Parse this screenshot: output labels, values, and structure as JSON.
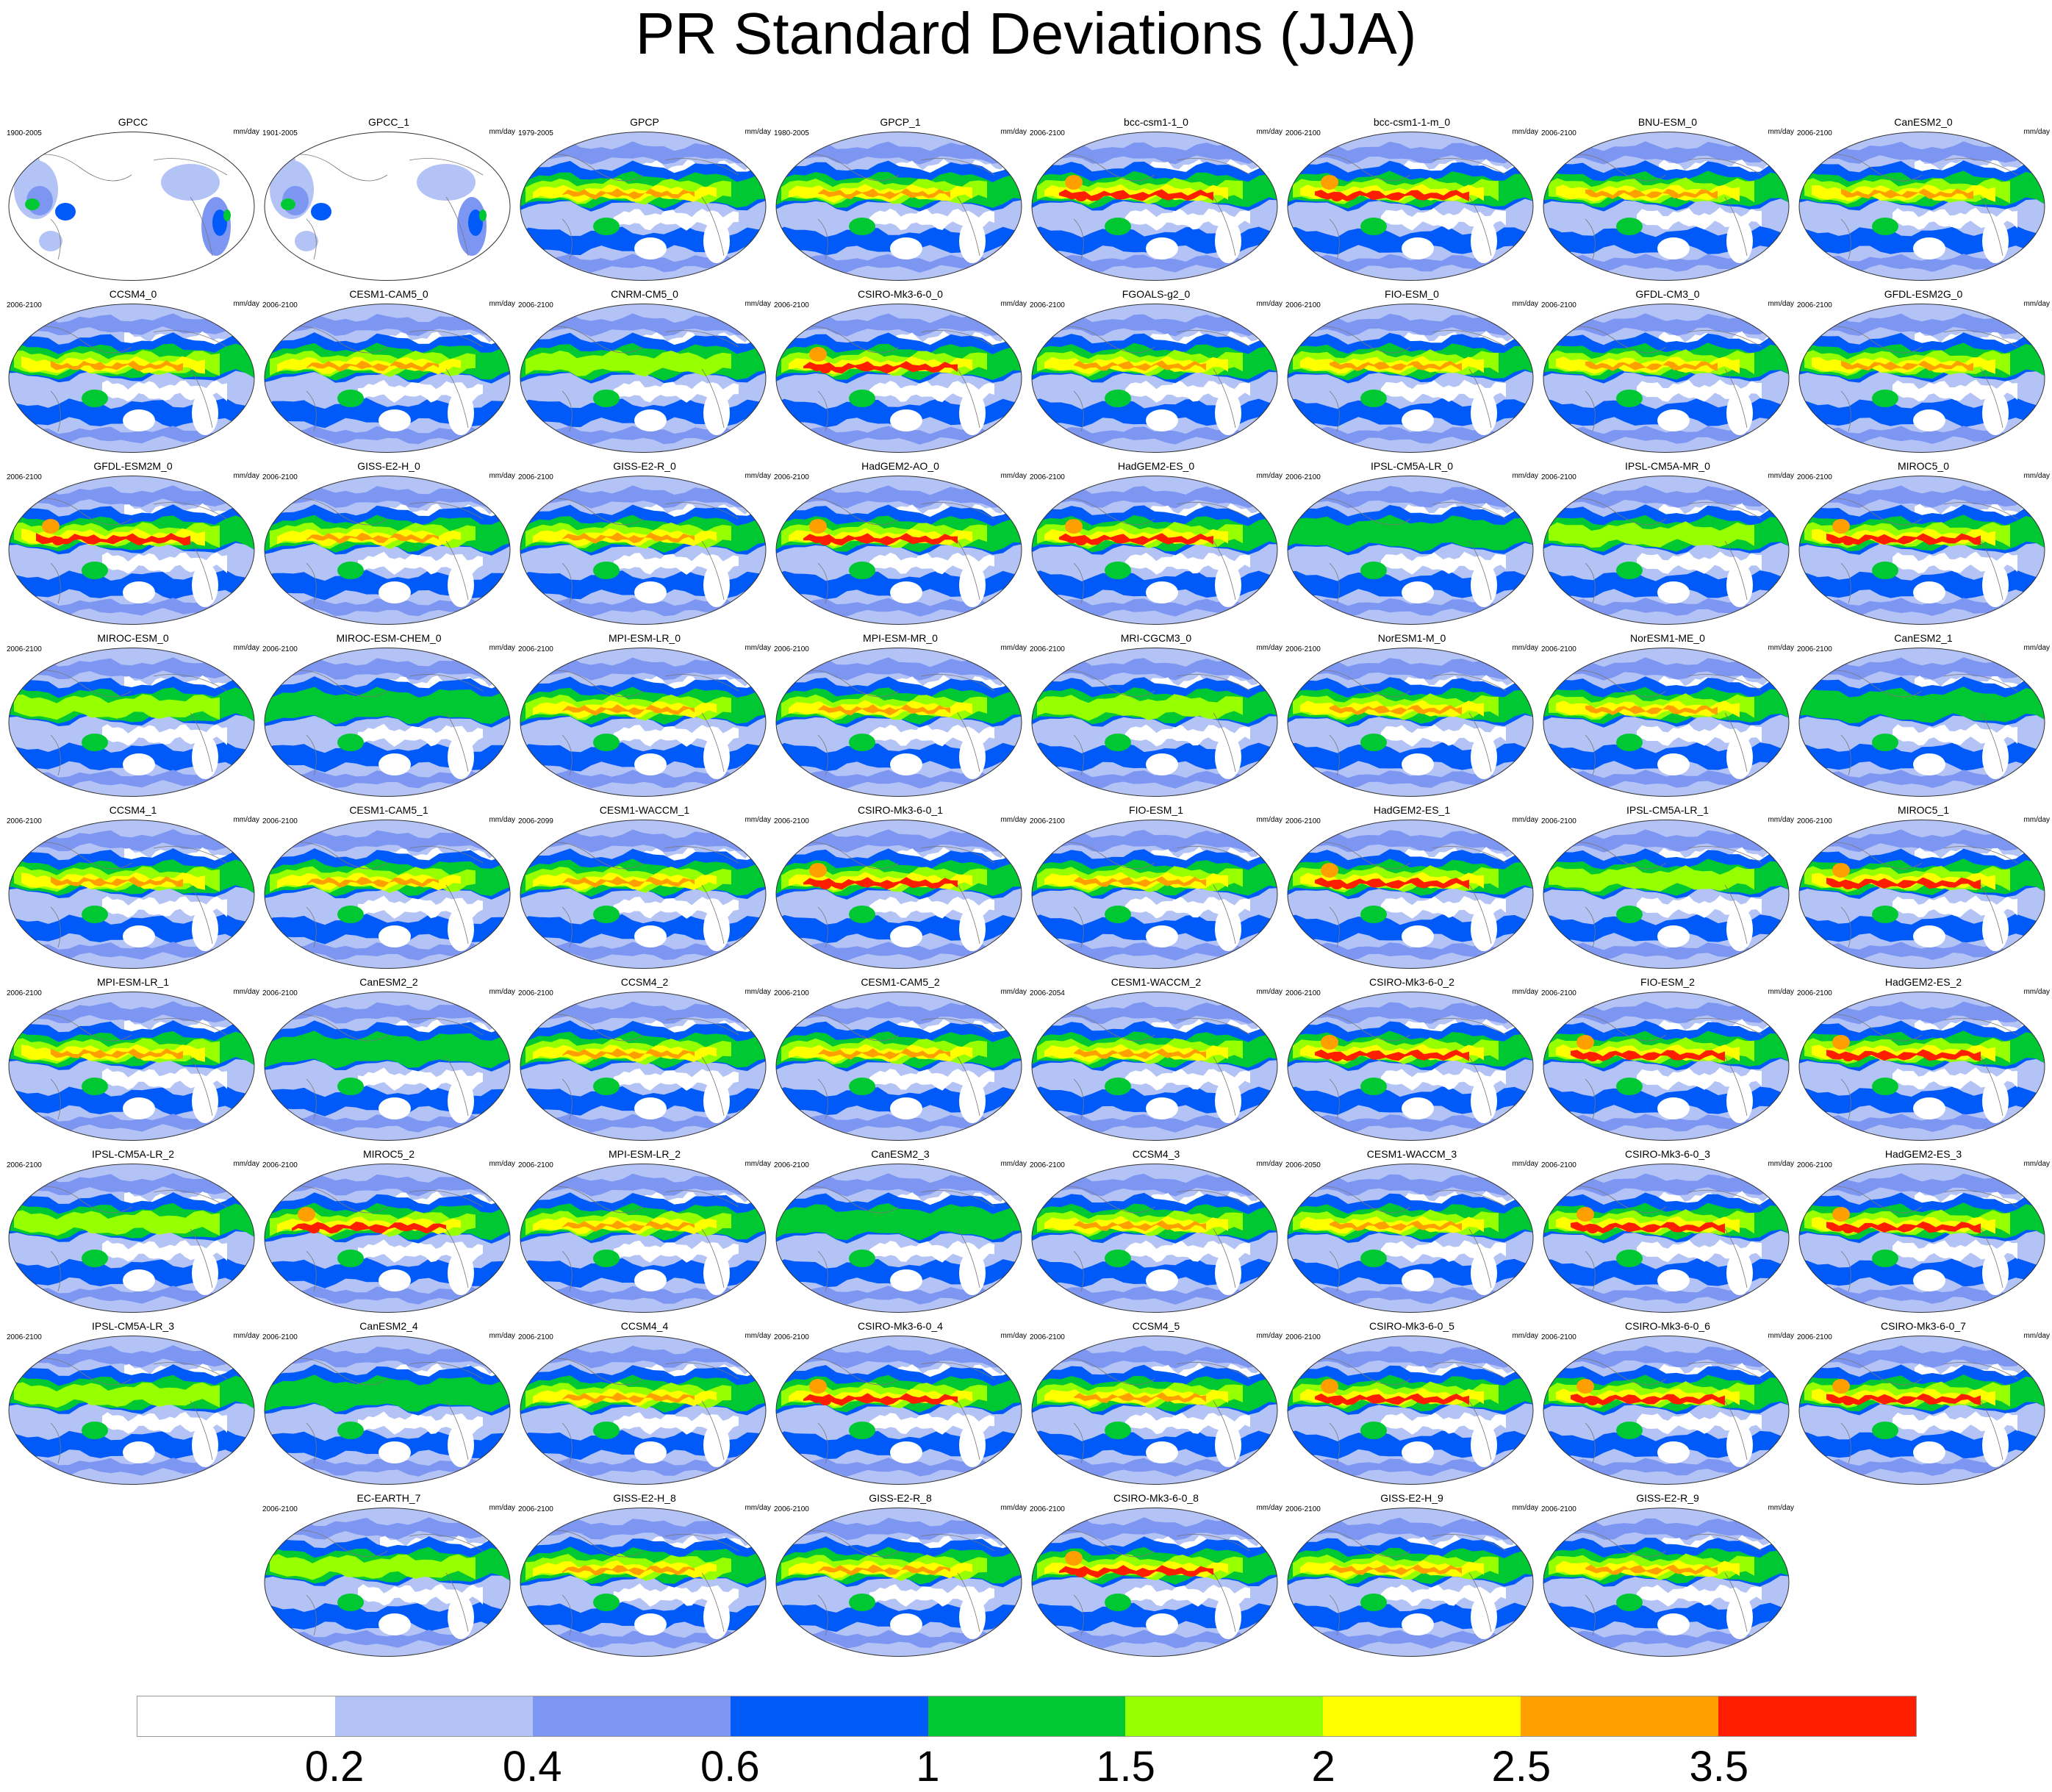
{
  "title": "PR Standard Deviations (JJA)",
  "units_label": "mm/day",
  "panels": [
    {
      "name": "GPCC",
      "years": "1900-2005",
      "style": "obs_land"
    },
    {
      "name": "GPCC_1",
      "years": "1901-2005",
      "style": "obs_land"
    },
    {
      "name": "GPCP",
      "years": "1979-2005",
      "style": "med"
    },
    {
      "name": "GPCP_1",
      "years": "1980-2005",
      "style": "med"
    },
    {
      "name": "bcc-csm1-1_0",
      "years": "2006-2100",
      "style": "high"
    },
    {
      "name": "bcc-csm1-1-m_0",
      "years": "2006-2100",
      "style": "high"
    },
    {
      "name": "BNU-ESM_0",
      "years": "2006-2100",
      "style": "med"
    },
    {
      "name": "CanESM2_0",
      "years": "2006-2100",
      "style": "med"
    },
    {
      "name": "CCSM4_0",
      "years": "2006-2100",
      "style": "med"
    },
    {
      "name": "CESM1-CAM5_0",
      "years": "2006-2100",
      "style": "med"
    },
    {
      "name": "CNRM-CM5_0",
      "years": "2006-2100",
      "style": "low"
    },
    {
      "name": "CSIRO-Mk3-6-0_0",
      "years": "2006-2100",
      "style": "high"
    },
    {
      "name": "FGOALS-g2_0",
      "years": "2006-2100",
      "style": "med"
    },
    {
      "name": "FIO-ESM_0",
      "years": "2006-2100",
      "style": "med"
    },
    {
      "name": "GFDL-CM3_0",
      "years": "2006-2100",
      "style": "med"
    },
    {
      "name": "GFDL-ESM2G_0",
      "years": "2006-2100",
      "style": "med"
    },
    {
      "name": "GFDL-ESM2M_0",
      "years": "2006-2100",
      "style": "high"
    },
    {
      "name": "GISS-E2-H_0",
      "years": "2006-2100",
      "style": "med"
    },
    {
      "name": "GISS-E2-R_0",
      "years": "2006-2100",
      "style": "med"
    },
    {
      "name": "HadGEM2-AO_0",
      "years": "2006-2100",
      "style": "high"
    },
    {
      "name": "HadGEM2-ES_0",
      "years": "2006-2100",
      "style": "high"
    },
    {
      "name": "IPSL-CM5A-LR_0",
      "years": "2006-2100",
      "style": "low"
    },
    {
      "name": "IPSL-CM5A-MR_0",
      "years": "2006-2100",
      "style": "low"
    },
    {
      "name": "MIROC5_0",
      "years": "2006-2100",
      "style": "high"
    },
    {
      "name": "MIROC-ESM_0",
      "years": "2006-2100",
      "style": "low"
    },
    {
      "name": "MIROC-ESM-CHEM_0",
      "years": "2006-2100",
      "style": "low"
    },
    {
      "name": "MPI-ESM-LR_0",
      "years": "2006-2100",
      "style": "med"
    },
    {
      "name": "MPI-ESM-MR_0",
      "years": "2006-2100",
      "style": "med"
    },
    {
      "name": "MRI-CGCM3_0",
      "years": "2006-2100",
      "style": "low"
    },
    {
      "name": "NorESM1-M_0",
      "years": "2006-2100",
      "style": "med"
    },
    {
      "name": "NorESM1-ME_0",
      "years": "2006-2100",
      "style": "med"
    },
    {
      "name": "CanESM2_1",
      "years": "2006-2100",
      "style": "low"
    },
    {
      "name": "CCSM4_1",
      "years": "2006-2100",
      "style": "med"
    },
    {
      "name": "CESM1-CAM5_1",
      "years": "2006-2100",
      "style": "med"
    },
    {
      "name": "CESM1-WACCM_1",
      "years": "2006-2099",
      "style": "med"
    },
    {
      "name": "CSIRO-Mk3-6-0_1",
      "years": "2006-2100",
      "style": "high"
    },
    {
      "name": "FIO-ESM_1",
      "years": "2006-2100",
      "style": "med"
    },
    {
      "name": "HadGEM2-ES_1",
      "years": "2006-2100",
      "style": "high"
    },
    {
      "name": "IPSL-CM5A-LR_1",
      "years": "2006-2100",
      "style": "low"
    },
    {
      "name": "MIROC5_1",
      "years": "2006-2100",
      "style": "high"
    },
    {
      "name": "MPI-ESM-LR_1",
      "years": "2006-2100",
      "style": "med"
    },
    {
      "name": "CanESM2_2",
      "years": "2006-2100",
      "style": "low"
    },
    {
      "name": "CCSM4_2",
      "years": "2006-2100",
      "style": "med"
    },
    {
      "name": "CESM1-CAM5_2",
      "years": "2006-2100",
      "style": "med"
    },
    {
      "name": "CESM1-WACCM_2",
      "years": "2006-2054",
      "style": "med"
    },
    {
      "name": "CSIRO-Mk3-6-0_2",
      "years": "2006-2100",
      "style": "high"
    },
    {
      "name": "FIO-ESM_2",
      "years": "2006-2100",
      "style": "high"
    },
    {
      "name": "HadGEM2-ES_2",
      "years": "2006-2100",
      "style": "high"
    },
    {
      "name": "IPSL-CM5A-LR_2",
      "years": "2006-2100",
      "style": "low"
    },
    {
      "name": "MIROC5_2",
      "years": "2006-2100",
      "style": "high"
    },
    {
      "name": "MPI-ESM-LR_2",
      "years": "2006-2100",
      "style": "med"
    },
    {
      "name": "CanESM2_3",
      "years": "2006-2100",
      "style": "low"
    },
    {
      "name": "CCSM4_3",
      "years": "2006-2100",
      "style": "med"
    },
    {
      "name": "CESM1-WACCM_3",
      "years": "2006-2050",
      "style": "med"
    },
    {
      "name": "CSIRO-Mk3-6-0_3",
      "years": "2006-2100",
      "style": "high"
    },
    {
      "name": "HadGEM2-ES_3",
      "years": "2006-2100",
      "style": "high"
    },
    {
      "name": "IPSL-CM5A-LR_3",
      "years": "2006-2100",
      "style": "low"
    },
    {
      "name": "CanESM2_4",
      "years": "2006-2100",
      "style": "low"
    },
    {
      "name": "CCSM4_4",
      "years": "2006-2100",
      "style": "med"
    },
    {
      "name": "CSIRO-Mk3-6-0_4",
      "years": "2006-2100",
      "style": "high"
    },
    {
      "name": "CCSM4_5",
      "years": "2006-2100",
      "style": "med"
    },
    {
      "name": "CSIRO-Mk3-6-0_5",
      "years": "2006-2100",
      "style": "high"
    },
    {
      "name": "CSIRO-Mk3-6-0_6",
      "years": "2006-2100",
      "style": "high"
    },
    {
      "name": "CSIRO-Mk3-6-0_7",
      "years": "2006-2100",
      "style": "high"
    },
    {
      "name": "EC-EARTH_7",
      "years": "2006-2100",
      "style": "low"
    },
    {
      "name": "GISS-E2-H_8",
      "years": "2006-2100",
      "style": "med"
    },
    {
      "name": "GISS-E2-R_8",
      "years": "2006-2100",
      "style": "med"
    },
    {
      "name": "CSIRO-Mk3-6-0_8",
      "years": "2006-2100",
      "style": "high"
    },
    {
      "name": "GISS-E2-H_9",
      "years": "2006-2100",
      "style": "med"
    },
    {
      "name": "GISS-E2-R_9",
      "years": "2006-2100",
      "style": "med"
    }
  ],
  "colorbar": {
    "colors": [
      "#ffffff",
      "#b4c3f5",
      "#7d96f2",
      "#005afa",
      "#00c832",
      "#96ff00",
      "#ffff00",
      "#ffa000",
      "#ff1e00"
    ],
    "labels": [
      "0.2",
      "0.4",
      "0.6",
      "1",
      "1.5",
      "2",
      "2.5",
      "3.5"
    ]
  }
}
